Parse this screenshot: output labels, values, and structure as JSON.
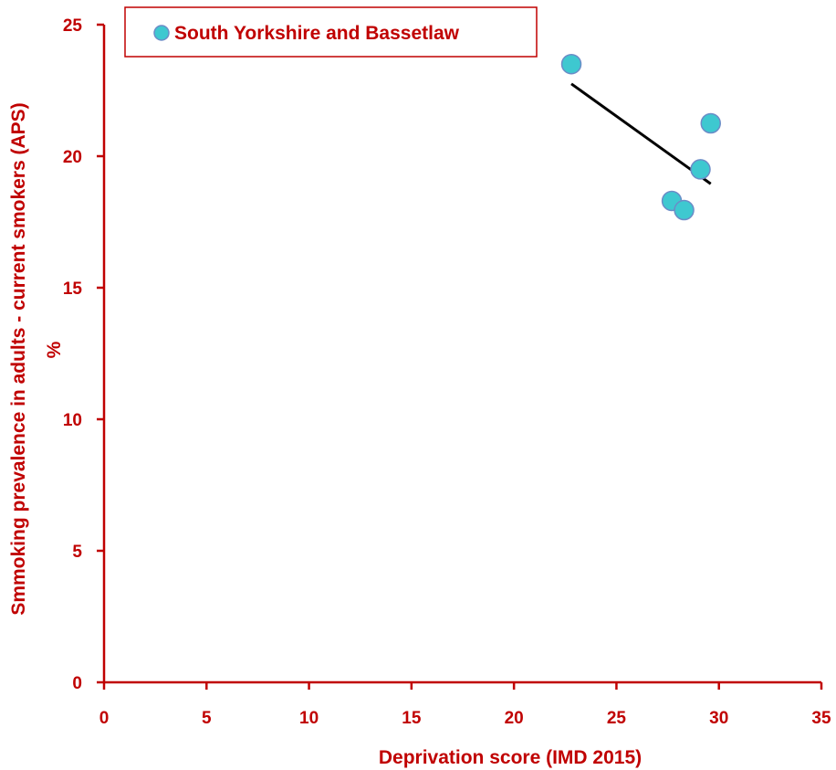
{
  "chart_data": {
    "type": "scatter",
    "xlabel": "Deprivation score (IMD 2015)",
    "ylabel_line1": "Smmoking prevalence in adults - current smokers (APS)",
    "ylabel_line2": "%",
    "xlim": [
      0,
      35
    ],
    "ylim": [
      0,
      25
    ],
    "xticks": [
      0,
      5,
      10,
      15,
      20,
      25,
      30,
      35
    ],
    "yticks": [
      0,
      5,
      10,
      15,
      20,
      25
    ],
    "grid": false,
    "legend_position": "top-left",
    "series": [
      {
        "name": "South Yorkshire and Bassetlaw",
        "color": "#3ec8d0",
        "edge_color": "#6b8cc7",
        "points": [
          {
            "x": 22.8,
            "y": 23.5
          },
          {
            "x": 27.7,
            "y": 18.3
          },
          {
            "x": 28.3,
            "y": 17.95
          },
          {
            "x": 29.1,
            "y": 19.5
          },
          {
            "x": 29.6,
            "y": 21.25
          }
        ]
      }
    ],
    "trendline": {
      "color": "#000000",
      "from": {
        "x": 22.8,
        "y": 22.75
      },
      "to": {
        "x": 29.6,
        "y": 18.95
      }
    },
    "axis_color": "#c00000"
  }
}
